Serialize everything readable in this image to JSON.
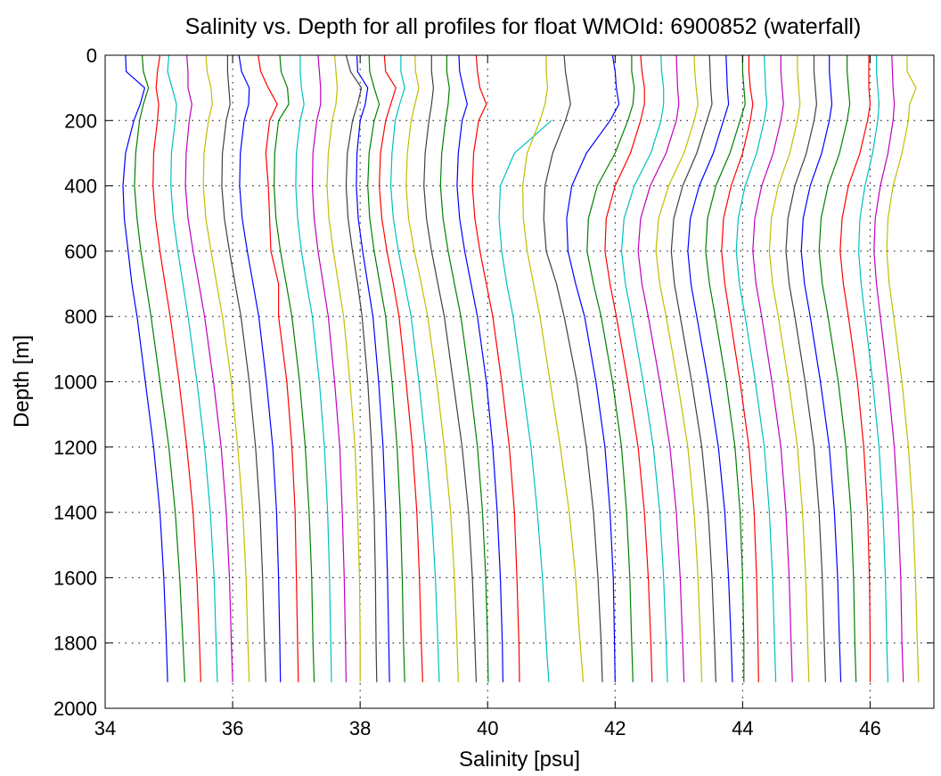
{
  "chart_data": {
    "type": "line",
    "title": "Salinity vs. Depth for all profiles for float WMOId: 6900852 (waterfall)",
    "xlabel": "Salinity [psu]",
    "ylabel": "Depth [m]",
    "xlim": [
      34,
      47
    ],
    "ylim": [
      0,
      2000
    ],
    "y_reversed": true,
    "xticks": [
      34,
      36,
      38,
      40,
      42,
      44,
      46
    ],
    "yticks": [
      0,
      200,
      400,
      600,
      800,
      1000,
      1200,
      1400,
      1600,
      1800,
      2000
    ],
    "grid": true,
    "depths": [
      0,
      50,
      100,
      150,
      200,
      300,
      400,
      500,
      600,
      700,
      800,
      1000,
      1200,
      1400,
      1600,
      1800,
      1920
    ],
    "series": [
      {
        "color": "#0000ff",
        "values": [
          34.32,
          34.33,
          34.62,
          34.55,
          34.45,
          34.32,
          34.28,
          34.3,
          34.36,
          34.42,
          34.5,
          34.63,
          34.76,
          34.86,
          34.92,
          34.96,
          34.98
        ]
      },
      {
        "color": "#008000",
        "values": [
          34.58,
          34.6,
          34.68,
          34.6,
          34.54,
          34.48,
          34.46,
          34.5,
          34.56,
          34.64,
          34.72,
          34.86,
          35.0,
          35.1,
          35.17,
          35.22,
          35.25
        ]
      },
      {
        "color": "#ff0000",
        "values": [
          34.86,
          34.82,
          34.8,
          34.84,
          34.82,
          34.76,
          34.75,
          34.79,
          34.86,
          34.94,
          35.02,
          35.16,
          35.28,
          35.38,
          35.44,
          35.48,
          35.5
        ]
      },
      {
        "color": "#00bfbf",
        "values": [
          35.0,
          34.98,
          35.05,
          35.12,
          35.1,
          35.04,
          35.03,
          35.07,
          35.14,
          35.22,
          35.3,
          35.44,
          35.56,
          35.65,
          35.71,
          35.74,
          35.76
        ]
      },
      {
        "color": "#bf00bf",
        "values": [
          35.28,
          35.3,
          35.3,
          35.36,
          35.32,
          35.27,
          35.26,
          35.3,
          35.38,
          35.47,
          35.56,
          35.7,
          35.82,
          35.9,
          35.95,
          35.98,
          36.0
        ]
      },
      {
        "color": "#bfbf00",
        "values": [
          35.58,
          35.6,
          35.66,
          35.68,
          35.62,
          35.55,
          35.54,
          35.58,
          35.66,
          35.75,
          35.84,
          35.98,
          36.08,
          36.16,
          36.21,
          36.24,
          36.26
        ]
      },
      {
        "color": "#404040",
        "values": [
          35.92,
          35.92,
          35.94,
          35.96,
          35.9,
          35.84,
          35.83,
          35.87,
          35.95,
          36.04,
          36.13,
          36.26,
          36.36,
          36.43,
          36.47,
          36.5,
          36.52
        ]
      },
      {
        "color": "#0000ff",
        "values": [
          36.1,
          36.14,
          36.26,
          36.25,
          36.18,
          36.12,
          36.11,
          36.15,
          36.23,
          36.32,
          36.41,
          36.53,
          36.63,
          36.69,
          36.72,
          36.74,
          36.75
        ]
      },
      {
        "color": "#ff0000",
        "values": [
          36.4,
          36.44,
          36.56,
          36.7,
          36.58,
          36.52,
          36.56,
          36.58,
          36.6,
          36.72,
          36.72,
          36.85,
          36.93,
          36.98,
          37.0,
          37.02,
          37.03
        ]
      },
      {
        "color": "#008000",
        "values": [
          36.74,
          36.76,
          36.86,
          36.88,
          36.72,
          36.66,
          36.65,
          36.68,
          36.75,
          36.84,
          36.93,
          37.05,
          37.14,
          37.2,
          37.24,
          37.26,
          37.28
        ]
      },
      {
        "color": "#00bfbf",
        "values": [
          37.06,
          37.06,
          37.08,
          37.12,
          37.06,
          37.0,
          36.99,
          37.02,
          37.08,
          37.16,
          37.25,
          37.36,
          37.44,
          37.49,
          37.52,
          37.54,
          37.55
        ]
      },
      {
        "color": "#bf00bf",
        "values": [
          37.34,
          37.36,
          37.38,
          37.38,
          37.32,
          37.26,
          37.25,
          37.28,
          37.34,
          37.42,
          37.5,
          37.6,
          37.68,
          37.72,
          37.75,
          37.77,
          37.78
        ]
      },
      {
        "color": "#bfbf00",
        "values": [
          37.6,
          37.62,
          37.64,
          37.62,
          37.56,
          37.5,
          37.48,
          37.51,
          37.58,
          37.66,
          37.74,
          37.84,
          37.92,
          37.96,
          37.99,
          38.0,
          38.0
        ]
      },
      {
        "color": "#404040",
        "values": [
          37.78,
          37.85,
          38.02,
          37.96,
          37.88,
          37.8,
          37.78,
          37.81,
          37.88,
          37.96,
          38.03,
          38.12,
          38.18,
          38.22,
          38.24,
          38.25,
          38.26
        ]
      },
      {
        "color": "#0000ff",
        "values": [
          37.95,
          37.96,
          38.12,
          38.08,
          38.0,
          37.95,
          37.94,
          37.97,
          38.04,
          38.12,
          38.2,
          38.29,
          38.36,
          38.4,
          38.43,
          38.45,
          38.46
        ]
      },
      {
        "color": "#008000",
        "values": [
          38.14,
          38.15,
          38.22,
          38.3,
          38.22,
          38.14,
          38.12,
          38.15,
          38.22,
          38.31,
          38.4,
          38.5,
          38.58,
          38.63,
          38.66,
          38.68,
          38.7
        ]
      },
      {
        "color": "#ff0000",
        "values": [
          38.38,
          38.4,
          38.56,
          38.48,
          38.4,
          38.32,
          38.3,
          38.34,
          38.42,
          38.52,
          38.61,
          38.72,
          38.82,
          38.89,
          38.93,
          38.96,
          38.98
        ]
      },
      {
        "color": "#00bfbf",
        "values": [
          38.64,
          38.64,
          38.7,
          38.62,
          38.55,
          38.5,
          38.48,
          38.52,
          38.6,
          38.7,
          38.8,
          38.92,
          39.03,
          39.12,
          39.18,
          39.22,
          39.24
        ]
      },
      {
        "color": "#bfbf00",
        "values": [
          38.86,
          38.87,
          38.92,
          38.86,
          38.8,
          38.74,
          38.72,
          38.76,
          38.85,
          38.96,
          39.06,
          39.2,
          39.32,
          39.42,
          39.48,
          39.52,
          39.54
        ]
      },
      {
        "color": "#404040",
        "values": [
          39.12,
          39.12,
          39.15,
          39.12,
          39.08,
          39.02,
          39.0,
          39.04,
          39.12,
          39.22,
          39.32,
          39.46,
          39.6,
          39.7,
          39.76,
          39.8,
          39.82
        ]
      },
      {
        "color": "#008000",
        "values": [
          39.36,
          39.36,
          39.4,
          39.38,
          39.34,
          39.28,
          39.26,
          39.3,
          39.38,
          39.48,
          39.58,
          39.72,
          39.84,
          39.92,
          39.97,
          40.0,
          40.01
        ]
      },
      {
        "color": "#0000ff",
        "values": [
          39.55,
          39.56,
          39.62,
          39.68,
          39.6,
          39.54,
          39.52,
          39.56,
          39.64,
          39.74,
          39.84,
          39.98,
          40.08,
          40.15,
          40.2,
          40.23,
          40.24
        ]
      },
      {
        "color": "#ff0000",
        "values": [
          39.82,
          39.84,
          39.88,
          39.98,
          39.86,
          39.78,
          39.76,
          39.8,
          39.88,
          39.98,
          40.08,
          40.22,
          40.34,
          40.42,
          40.46,
          40.49,
          40.5
        ]
      },
      {
        "color": "#00bfbf",
        "values": [
          null,
          null,
          null,
          null,
          41.0,
          40.42,
          40.2,
          40.18,
          40.22,
          40.3,
          40.4,
          40.54,
          40.68,
          40.78,
          40.86,
          40.92,
          40.96
        ]
      },
      {
        "color": "#bfbf00",
        "values": [
          40.92,
          40.92,
          40.94,
          40.9,
          40.82,
          40.62,
          40.55,
          40.56,
          40.62,
          40.72,
          40.82,
          40.98,
          41.14,
          41.28,
          41.38,
          41.45,
          41.5
        ]
      },
      {
        "color": "#404040",
        "values": [
          41.2,
          41.22,
          41.26,
          41.3,
          41.22,
          41.02,
          40.9,
          40.88,
          40.92,
          41.08,
          41.2,
          41.4,
          41.55,
          41.66,
          41.73,
          41.78,
          41.8
        ]
      },
      {
        "color": "#0000ff",
        "values": [
          41.96,
          42.0,
          42.02,
          42.06,
          41.92,
          41.55,
          41.32,
          41.24,
          41.26,
          41.38,
          41.52,
          41.7,
          41.84,
          41.92,
          41.97,
          41.99,
          42.0
        ]
      },
      {
        "color": "#008000",
        "values": [
          42.26,
          42.26,
          42.3,
          42.28,
          42.2,
          42.0,
          41.72,
          41.58,
          41.56,
          41.66,
          41.78,
          41.96,
          42.1,
          42.18,
          42.23,
          42.26,
          42.28
        ]
      },
      {
        "color": "#ff0000",
        "values": [
          42.4,
          42.42,
          42.46,
          42.46,
          42.4,
          42.24,
          42.0,
          41.86,
          41.84,
          41.92,
          42.02,
          42.2,
          42.36,
          42.46,
          42.52,
          42.56,
          42.58
        ]
      },
      {
        "color": "#00bfbf",
        "values": [
          42.72,
          42.73,
          42.76,
          42.76,
          42.72,
          42.56,
          42.3,
          42.14,
          42.1,
          42.16,
          42.26,
          42.44,
          42.6,
          42.7,
          42.76,
          42.8,
          42.82
        ]
      },
      {
        "color": "#bf00bf",
        "values": [
          42.96,
          42.97,
          42.98,
          43.0,
          42.96,
          42.8,
          42.55,
          42.4,
          42.36,
          42.42,
          42.52,
          42.7,
          42.86,
          42.96,
          43.02,
          43.06,
          43.08
        ]
      },
      {
        "color": "#bfbf00",
        "values": [
          43.24,
          43.25,
          43.27,
          43.3,
          43.24,
          43.08,
          42.84,
          42.68,
          42.64,
          42.7,
          42.8,
          42.98,
          43.14,
          43.24,
          43.3,
          43.34,
          43.36
        ]
      },
      {
        "color": "#404040",
        "values": [
          43.48,
          43.49,
          43.5,
          43.52,
          43.44,
          43.28,
          43.06,
          42.92,
          42.88,
          42.93,
          43.02,
          43.2,
          43.36,
          43.46,
          43.52,
          43.56,
          43.58
        ]
      },
      {
        "color": "#0000ff",
        "values": [
          43.74,
          43.75,
          43.76,
          43.78,
          43.7,
          43.54,
          43.32,
          43.18,
          43.14,
          43.19,
          43.28,
          43.46,
          43.62,
          43.72,
          43.78,
          43.82,
          43.84
        ]
      },
      {
        "color": "#008000",
        "values": [
          44.0,
          44.0,
          44.02,
          44.04,
          43.96,
          43.8,
          43.58,
          43.45,
          43.42,
          43.48,
          43.57,
          43.74,
          43.88,
          43.96,
          44.0,
          44.02,
          44.02
        ]
      },
      {
        "color": "#ff0000",
        "values": [
          44.1,
          44.1,
          44.12,
          44.16,
          44.12,
          44.0,
          43.82,
          43.7,
          43.67,
          43.72,
          43.8,
          43.96,
          44.1,
          44.18,
          44.22,
          44.24,
          44.25
        ]
      },
      {
        "color": "#00bfbf",
        "values": [
          44.34,
          44.35,
          44.36,
          44.38,
          44.34,
          44.22,
          44.04,
          43.93,
          43.9,
          43.95,
          44.04,
          44.2,
          44.34,
          44.42,
          44.47,
          44.5,
          44.52
        ]
      },
      {
        "color": "#bf00bf",
        "values": [
          44.6,
          44.6,
          44.62,
          44.64,
          44.6,
          44.48,
          44.3,
          44.19,
          44.16,
          44.21,
          44.3,
          44.46,
          44.6,
          44.68,
          44.73,
          44.76,
          44.78
        ]
      },
      {
        "color": "#bfbf00",
        "values": [
          44.86,
          44.86,
          44.88,
          44.9,
          44.86,
          44.74,
          44.56,
          44.45,
          44.42,
          44.47,
          44.56,
          44.72,
          44.86,
          44.94,
          44.99,
          45.02,
          45.04
        ]
      },
      {
        "color": "#404040",
        "values": [
          45.12,
          45.12,
          45.14,
          45.16,
          45.12,
          45.0,
          44.82,
          44.71,
          44.68,
          44.73,
          44.82,
          44.98,
          45.12,
          45.2,
          45.25,
          45.28,
          45.3
        ]
      },
      {
        "color": "#0000ff",
        "values": [
          45.36,
          45.36,
          45.38,
          45.4,
          45.36,
          45.24,
          45.06,
          44.95,
          44.92,
          44.97,
          45.06,
          45.22,
          45.36,
          45.44,
          45.49,
          45.52,
          45.54
        ]
      },
      {
        "color": "#008000",
        "values": [
          45.64,
          45.64,
          45.66,
          45.68,
          45.64,
          45.52,
          45.34,
          45.23,
          45.2,
          45.25,
          45.34,
          45.5,
          45.62,
          45.7,
          45.74,
          45.76,
          45.78
        ]
      },
      {
        "color": "#ff0000",
        "values": [
          45.98,
          45.98,
          45.98,
          46.0,
          45.96,
          45.84,
          45.66,
          45.56,
          45.53,
          45.58,
          45.66,
          45.8,
          45.9,
          45.96,
          45.99,
          46.0,
          46.0
        ]
      },
      {
        "color": "#00bfbf",
        "values": [
          46.1,
          46.1,
          46.12,
          46.14,
          46.12,
          46.04,
          45.92,
          45.84,
          45.82,
          45.86,
          45.92,
          46.04,
          46.14,
          46.2,
          46.24,
          46.26,
          46.28
        ]
      },
      {
        "color": "#bf00bf",
        "values": [
          46.34,
          46.35,
          46.36,
          46.38,
          46.36,
          46.28,
          46.16,
          46.08,
          46.06,
          46.1,
          46.16,
          46.28,
          46.38,
          46.44,
          46.48,
          46.5,
          46.52
        ]
      },
      {
        "color": "#bfbf00",
        "values": [
          46.58,
          46.58,
          46.72,
          46.62,
          46.6,
          46.5,
          46.36,
          46.28,
          46.26,
          46.3,
          46.37,
          46.5,
          46.6,
          46.67,
          46.71,
          46.74,
          46.76
        ]
      }
    ]
  }
}
